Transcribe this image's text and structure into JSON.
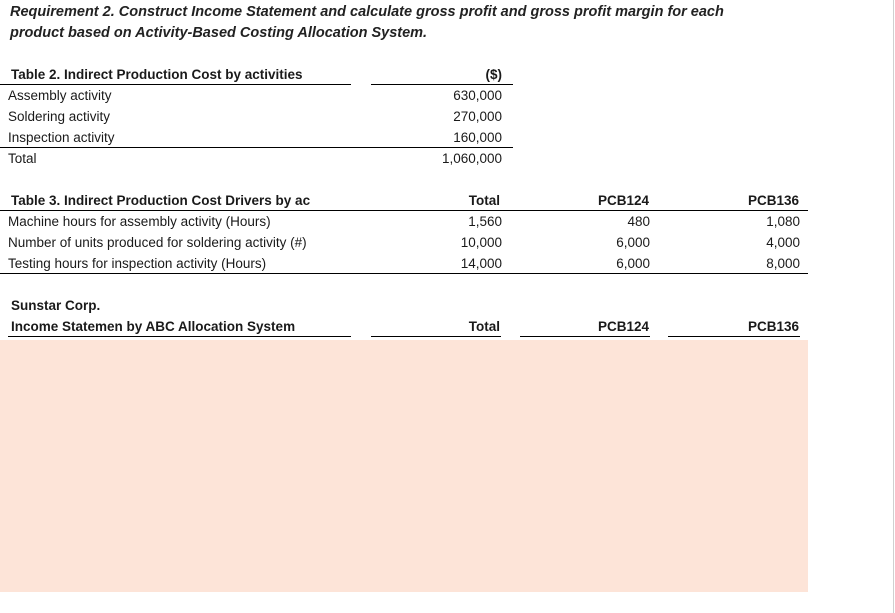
{
  "requirement": {
    "line1": "Requirement 2. Construct Income Statement and calculate gross profit and gross profit margin for each",
    "line2": "product based on Activity-Based Costing Allocation System."
  },
  "table2": {
    "title": "Table 2. Indirect Production Cost by activities",
    "unit": "($)",
    "rows": [
      {
        "label": "Assembly activity",
        "value": "630,000"
      },
      {
        "label": "Soldering activity",
        "value": "270,000"
      },
      {
        "label": "Inspection activity",
        "value": "160,000"
      },
      {
        "label": "Total",
        "value": "1,060,000"
      }
    ]
  },
  "table3": {
    "title": "Table 3. Indirect Production Cost Drivers by ac",
    "headers": [
      "Total",
      "PCB124",
      "PCB136"
    ],
    "rows": [
      {
        "label": "Machine hours for assembly activity (Hours)",
        "total": "1,560",
        "pcb124": "480",
        "pcb136": "1,080"
      },
      {
        "label": "Number of units produced for soldering activity (#)",
        "total": "10,000",
        "pcb124": "6,000",
        "pcb136": "4,000"
      },
      {
        "label": "Testing hours for inspection activity (Hours)",
        "total": "14,000",
        "pcb124": "6,000",
        "pcb136": "8,000"
      }
    ]
  },
  "income": {
    "company": "Sunstar Corp.",
    "title": "Income Statemen by ABC Allocation System",
    "headers": [
      "Total",
      "PCB124",
      "PCB136"
    ]
  },
  "colors": {
    "answer_area": "#fde4d8"
  }
}
